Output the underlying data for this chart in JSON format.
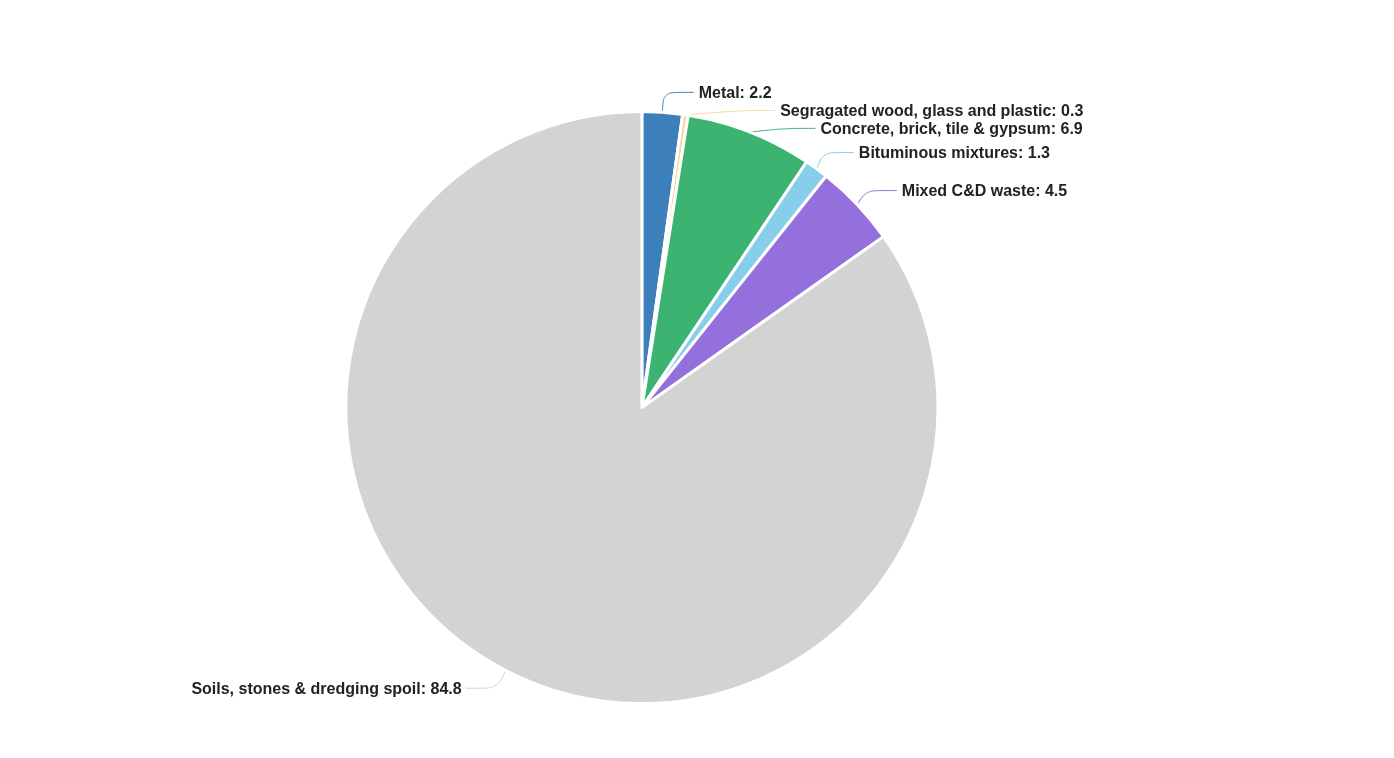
{
  "chart_data": {
    "type": "pie",
    "categories": [
      "Metal",
      "Segragated wood, glass and plastic",
      "Concrete, brick, tile & gypsum",
      "Bituminous mixtures",
      "Mixed C&D waste",
      "Soils, stones & dredging spoil"
    ],
    "values": [
      2.2,
      0.3,
      6.9,
      1.3,
      4.5,
      84.8
    ],
    "colors": [
      "#3d7fba",
      "#f6d7a2",
      "#3cb371",
      "#87ceeb",
      "#9370db",
      "#d3d3d3"
    ],
    "value_labels": [
      ": 2.2",
      ": 0.3",
      ": 6.9",
      ": 1.3",
      ": 4.5",
      ": 84.8"
    ]
  }
}
